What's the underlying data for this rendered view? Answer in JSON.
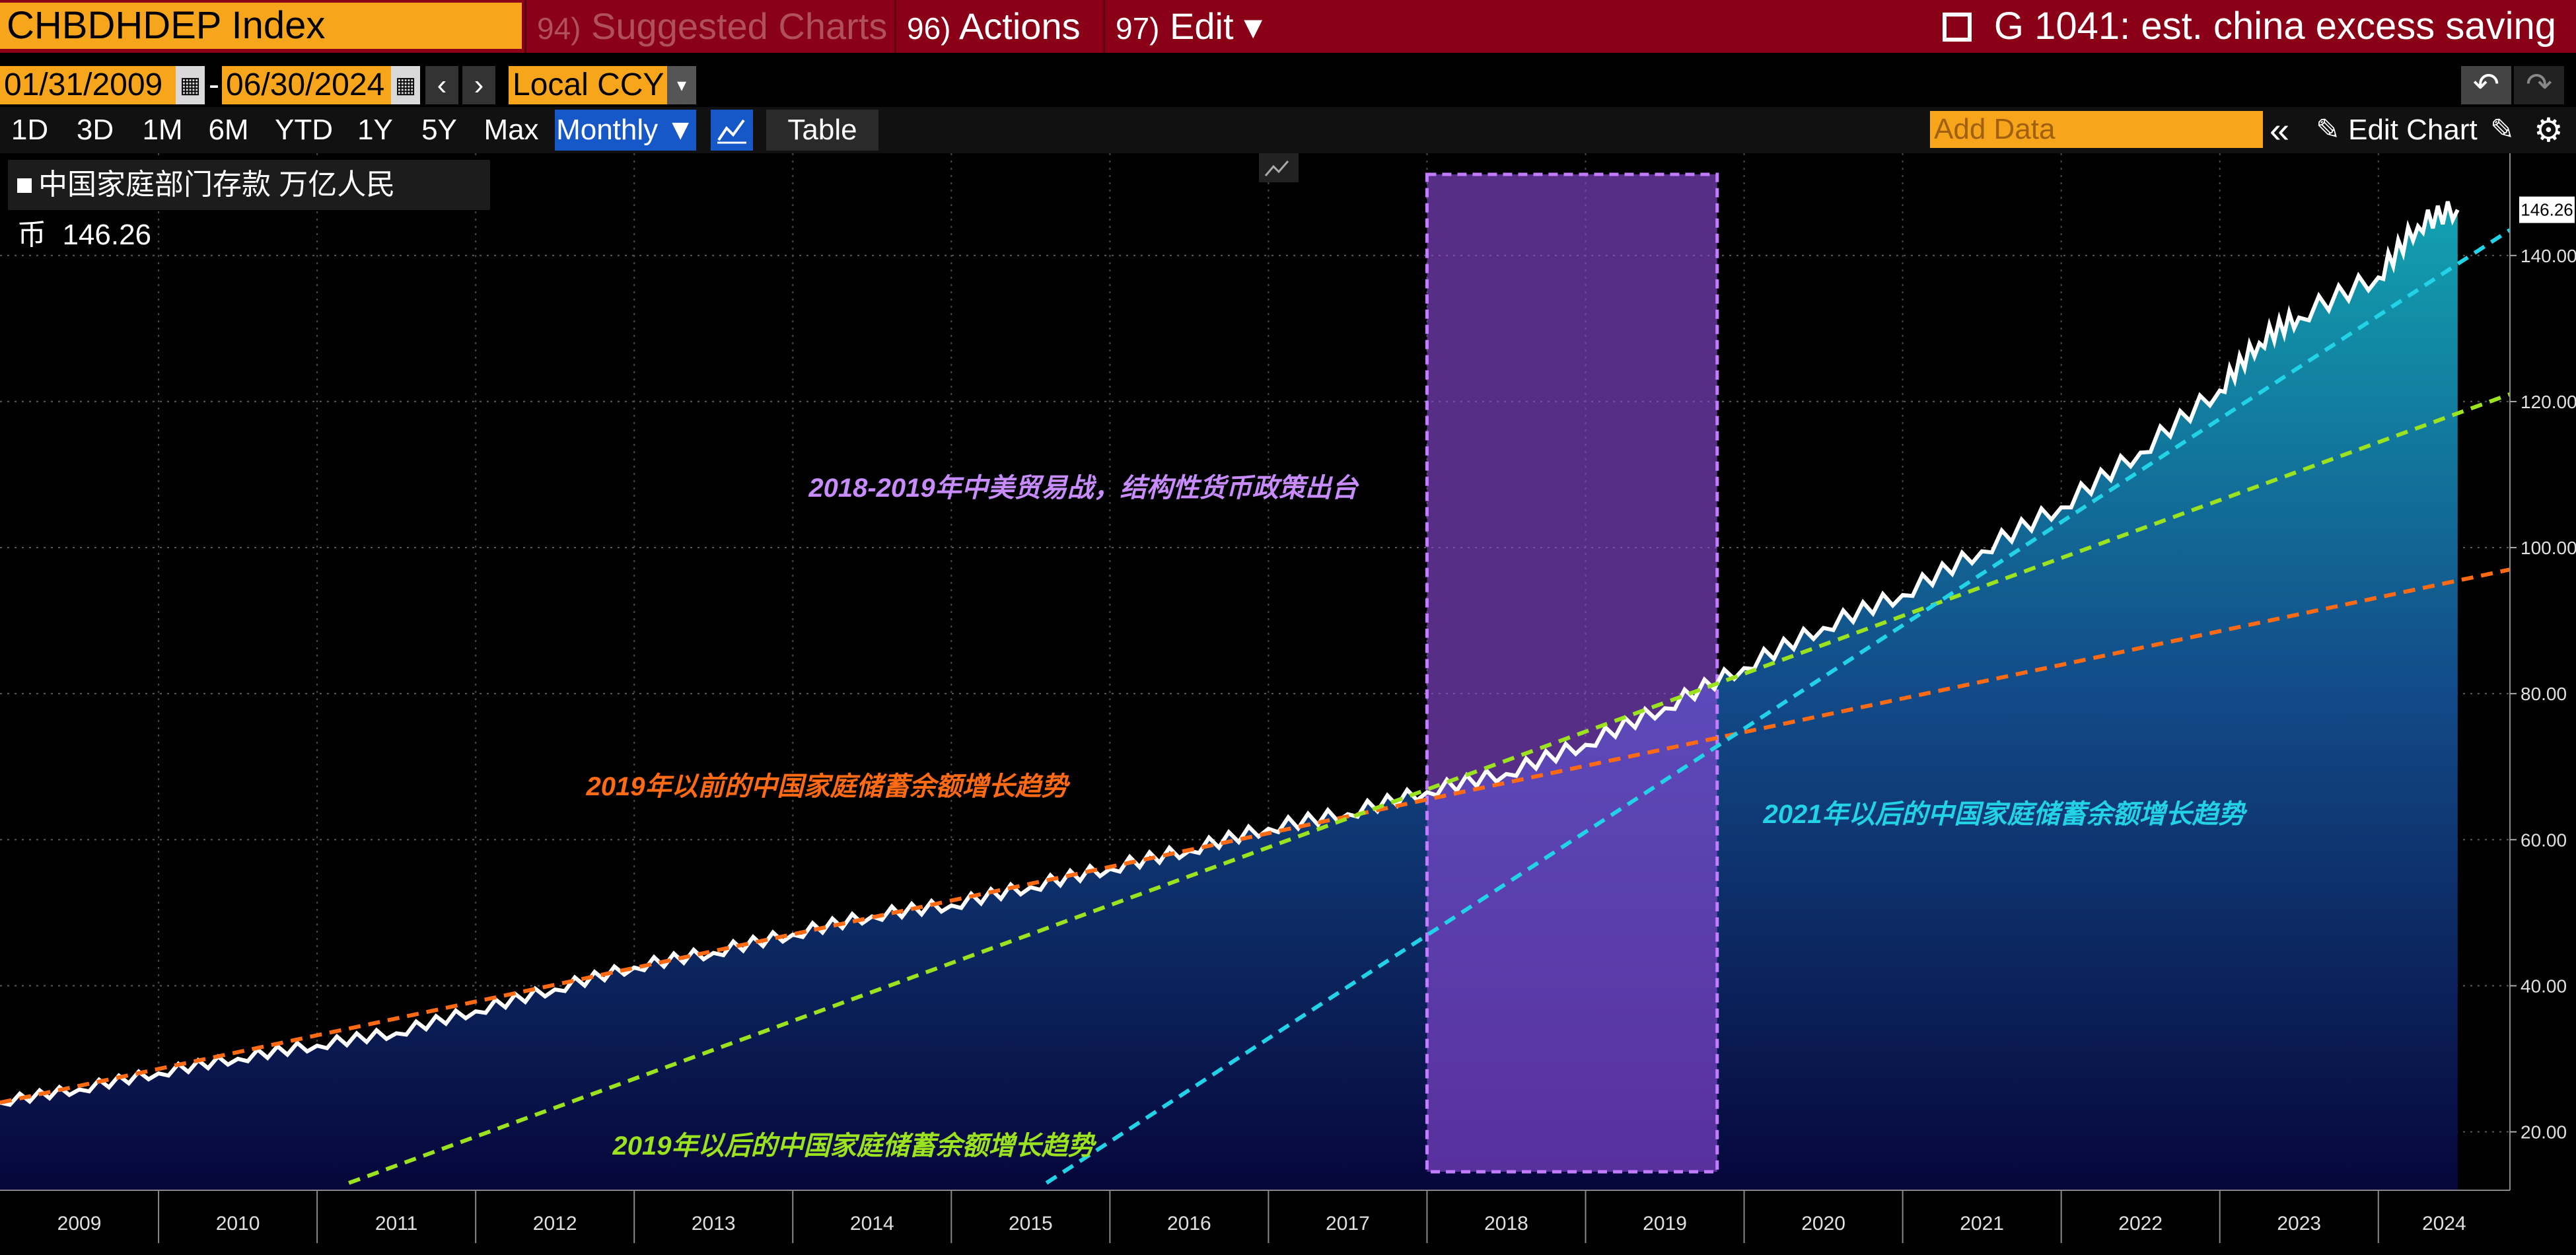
{
  "topbar": {
    "ticker": "CHBDHDEP Index",
    "menu": [
      {
        "num": "94)",
        "label": "Suggested Charts",
        "arrow": "▾"
      },
      {
        "num": "96)",
        "label": "Actions",
        "arrow": "▾"
      },
      {
        "num": "97)",
        "label": "Edit",
        "arrow": "▾"
      }
    ],
    "title": "G 1041: est. china excess saving"
  },
  "datebar": {
    "start": "01/31/2009",
    "sep": "-",
    "end": "06/30/2024",
    "prev": "‹",
    "next": "›",
    "currency": "Local CCY",
    "currency_arrow": "▾",
    "undo": "↶",
    "redo": "↷"
  },
  "toolbar": {
    "timeframes": [
      "1D",
      "3D",
      "1M",
      "6M",
      "YTD",
      "1Y",
      "5Y",
      "Max"
    ],
    "period": "Monthly ▼",
    "table": "Table",
    "add_data_placeholder": "Add Data",
    "collapse": "«",
    "edit_chart": "Edit Chart"
  },
  "legend": {
    "label": "中国家庭部门存款 万亿人民币",
    "value": "146.26"
  },
  "colors": {
    "accent": "#f7a61b",
    "title_bar": "#8a0017",
    "orange_trend": "#ff6a13",
    "green_trend": "#9be21f",
    "cyan_trend": "#22d3e8",
    "highlight": "#b46bff"
  },
  "chart_data": {
    "type": "area",
    "x_range": [
      "2009-01",
      "2024-06"
    ],
    "ylim": [
      12,
      154
    ],
    "yticks": [
      "20.00",
      "40.00",
      "60.00",
      "80.00",
      "100.00",
      "120.00",
      "140.00"
    ],
    "year_labels": [
      "2009",
      "2010",
      "2011",
      "2012",
      "2013",
      "2014",
      "2015",
      "2016",
      "2017",
      "2018",
      "2019",
      "2020",
      "2021",
      "2022",
      "2023",
      "2024"
    ],
    "last_value_label": "146.26",
    "series": [
      {
        "name": "中国家庭部门存款 万亿人民币",
        "points": [
          [
            2009.0,
            24.0
          ],
          [
            2009.5,
            25.8
          ],
          [
            2010.0,
            28.0
          ],
          [
            2010.5,
            30.0
          ],
          [
            2011.0,
            31.8
          ],
          [
            2011.5,
            33.5
          ],
          [
            2012.0,
            36.5
          ],
          [
            2012.5,
            39.5
          ],
          [
            2013.0,
            42.5
          ],
          [
            2013.5,
            44.5
          ],
          [
            2014.0,
            47.0
          ],
          [
            2014.5,
            49.5
          ],
          [
            2015.0,
            51.0
          ],
          [
            2015.5,
            53.5
          ],
          [
            2016.0,
            56.0
          ],
          [
            2016.5,
            58.5
          ],
          [
            2017.0,
            61.5
          ],
          [
            2017.5,
            63.5
          ],
          [
            2018.0,
            66.5
          ],
          [
            2018.5,
            69.0
          ],
          [
            2019.0,
            73.0
          ],
          [
            2019.5,
            78.0
          ],
          [
            2020.0,
            83.5
          ],
          [
            2020.5,
            89.0
          ],
          [
            2021.0,
            93.5
          ],
          [
            2021.5,
            99.5
          ],
          [
            2022.0,
            105.5
          ],
          [
            2022.5,
            113.0
          ],
          [
            2023.0,
            121.5
          ],
          [
            2023.25,
            128.0
          ],
          [
            2023.5,
            131.5
          ],
          [
            2024.0,
            137.0
          ],
          [
            2024.25,
            144.0
          ],
          [
            2024.5,
            146.26
          ]
        ]
      }
    ],
    "trend_lines": [
      {
        "label": "2019年以前的中国家庭储蓄余额增长趋势",
        "start": [
          2009.0,
          24.0
        ],
        "end": [
          2024.83,
          97.0
        ]
      },
      {
        "label": "2019年以后的中国家庭储蓄余额增长趋势",
        "start": [
          2011.2,
          13.0
        ],
        "end": [
          2024.83,
          121.0
        ]
      },
      {
        "label": "2021年以后的中国家庭储蓄余额增长趋势",
        "start": [
          2015.6,
          13.0
        ],
        "end": [
          2024.83,
          143.5
        ]
      }
    ],
    "highlight_region": {
      "label": "2018-2019年中美贸易战，结构性货币政策出台",
      "x_start": 2018.0,
      "x_end": 2019.83
    }
  }
}
